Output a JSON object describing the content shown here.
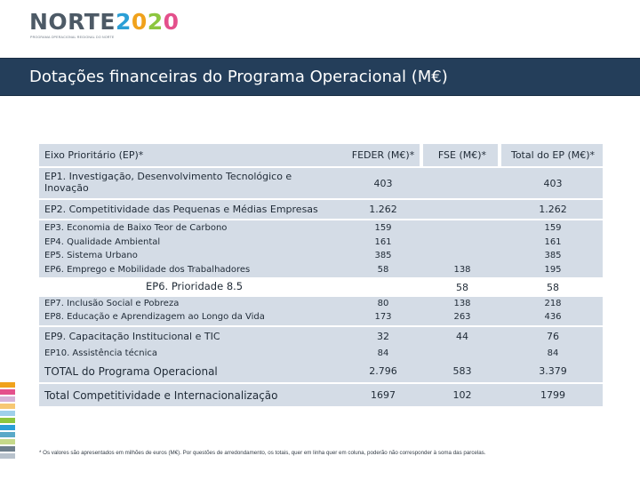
{
  "brand": {
    "logo_parts": [
      "NORTE",
      "2",
      "0",
      "2",
      "0"
    ],
    "logo_subtitle": "PROGRAMA OPERACIONAL REGIONAL DO NORTE",
    "colors": {
      "gray": "#4d5a66",
      "blue": "#2b9fd6",
      "orange": "#f0a21c",
      "green": "#8dc63f",
      "pink": "#e4508c"
    }
  },
  "title": "Dotações financeiras do Programa Operacional (M€)",
  "table": {
    "headers": {
      "axis": "Eixo Prioritário (EP)*",
      "feder": "FEDER (M€)*",
      "fse": "FSE (M€)*",
      "total": "Total do EP (M€)*"
    },
    "ep1": {
      "label": "EP1. Investigação, Desenvolvimento Tecnológico e Inovação",
      "feder": "403",
      "fse": "",
      "total": "403"
    },
    "ep2": {
      "label": "EP2. Competitividade das Pequenas e Médias Empresas",
      "feder": "1.262",
      "fse": "",
      "total": "1.262"
    },
    "group_a": [
      {
        "label": "EP3. Economia de Baixo Teor de Carbono",
        "feder": "159",
        "fse": "",
        "total": "159"
      },
      {
        "label": "EP4. Qualidade Ambiental",
        "feder": "161",
        "fse": "",
        "total": "161"
      },
      {
        "label": "EP5. Sistema Urbano",
        "feder": "385",
        "fse": "",
        "total": "385"
      },
      {
        "label": "EP6. Emprego e Mobilidade dos Trabalhadores",
        "feder": "58",
        "fse": "138",
        "total": "195"
      }
    ],
    "ep6_priority": {
      "label": "EP6. Prioridade 8.5",
      "feder": "",
      "fse": "58",
      "total": "58"
    },
    "group_b": [
      {
        "label": "EP7. Inclusão Social e Pobreza",
        "feder": "80",
        "fse": "138",
        "total": "218"
      },
      {
        "label": "EP8. Educação e Aprendizagem ao Longo da Vida",
        "feder": "173",
        "fse": "263",
        "total": "436"
      }
    ],
    "ep9": {
      "label": "EP9. Capacitação Institucional e TIC",
      "feder": "32",
      "fse": "44",
      "total": "76"
    },
    "ep10": {
      "label": "EP10. Assistência técnica",
      "feder": "84",
      "fse": "",
      "total": "84"
    },
    "total_po": {
      "label": "TOTAL do Programa Operacional",
      "feder": "2.796",
      "fse": "583",
      "total": "3.379"
    },
    "total_ci": {
      "label": "Total Competitividade e Internacionalização",
      "feder": "1697",
      "fse": "102",
      "total": "1799"
    }
  },
  "footnote": "* Os valores são apresentados em milhões de euros (M€). Por questões de arredondamento, os totais, quer em linha quer em coluna, poderão não corresponder à soma das parcelas.",
  "side_strip_colors": [
    "#f0a21c",
    "#e4508c",
    "#d6b3d9",
    "#f7c873",
    "#9fd0ea",
    "#8dc63f",
    "#2b9fd6",
    "#5aa9c8",
    "#c6d98a",
    "#6e7f8c",
    "#b8c2cc"
  ]
}
